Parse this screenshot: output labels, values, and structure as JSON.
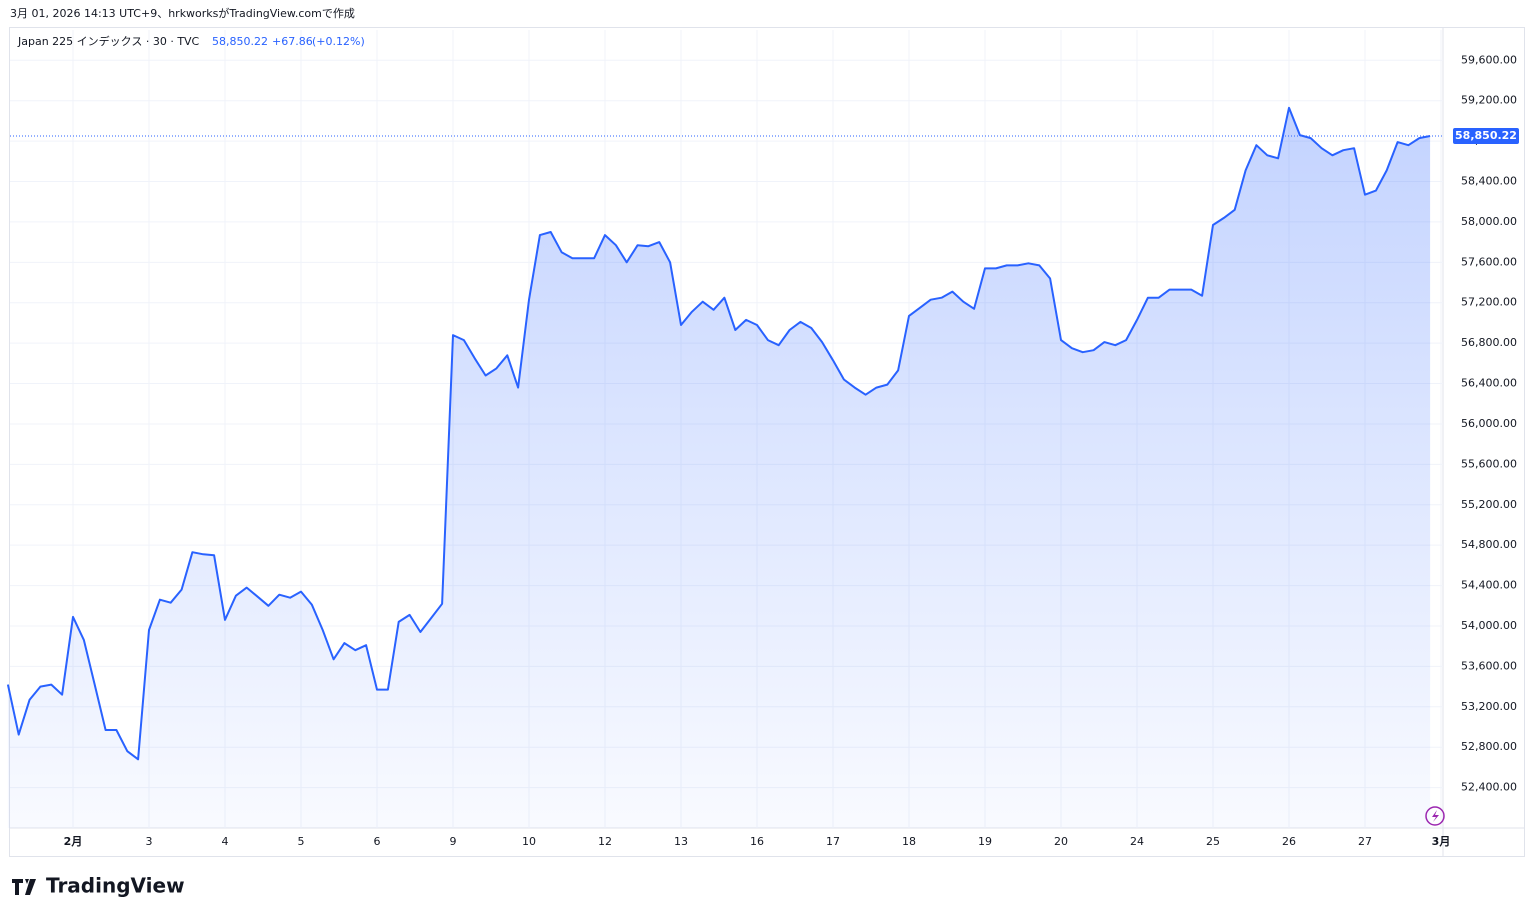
{
  "caption": "3月 01, 2026 14:13 UTC+9、hrkworksがTradingView.comで作成",
  "brand": "TradingView",
  "chart_data": {
    "type": "area",
    "symbol": "Japan 225 インデックス · 30 · TVC",
    "last_price": {
      "value": 58850.22,
      "label": "58,850.22"
    },
    "change": "+67.86",
    "change_pct": "(+0.12%)",
    "grid": true,
    "categories": [
      null,
      null,
      null,
      null,
      null,
      null,
      "2月",
      null,
      null,
      null,
      null,
      null,
      null,
      "3",
      null,
      null,
      null,
      null,
      null,
      null,
      "4",
      null,
      null,
      null,
      null,
      null,
      null,
      "5",
      null,
      null,
      null,
      null,
      null,
      null,
      "6",
      null,
      null,
      null,
      null,
      null,
      null,
      "9",
      null,
      null,
      null,
      null,
      null,
      null,
      "10",
      null,
      null,
      null,
      null,
      null,
      null,
      "12",
      null,
      null,
      null,
      null,
      null,
      null,
      "13",
      null,
      null,
      null,
      null,
      null,
      null,
      "16",
      null,
      null,
      null,
      null,
      null,
      null,
      "17",
      null,
      null,
      null,
      null,
      null,
      null,
      "18",
      null,
      null,
      null,
      null,
      null,
      null,
      "19",
      null,
      null,
      null,
      null,
      null,
      null,
      "20",
      null,
      null,
      null,
      null,
      null,
      null,
      "24",
      null,
      null,
      null,
      null,
      null,
      null,
      "25",
      null,
      null,
      null,
      null,
      null,
      null,
      "26",
      null,
      null,
      null,
      null,
      null,
      null,
      "27",
      null,
      null,
      null,
      null,
      null,
      null,
      "3月"
    ],
    "series": [
      {
        "color": "#2962ff",
        "values": [
          53420,
          52925,
          53270,
          53400,
          53420,
          53320,
          54090,
          53860,
          53420,
          52970,
          52970,
          52760,
          52680,
          53960,
          54260,
          54230,
          54360,
          54730,
          54710,
          54700,
          54060,
          54300,
          54380,
          54290,
          54200,
          54310,
          54280,
          54340,
          54210,
          53960,
          53670,
          53830,
          53760,
          53810,
          53370,
          53370,
          54040,
          54110,
          53940,
          54080,
          54220,
          56880,
          56830,
          56650,
          56480,
          56550,
          56680,
          56360,
          57230,
          57870,
          57900,
          57700,
          57640,
          57640,
          57640,
          57870,
          57770,
          57600,
          57770,
          57760,
          57800,
          57600,
          56980,
          57110,
          57210,
          57130,
          57250,
          56930,
          57030,
          56980,
          56830,
          56780,
          56930,
          57010,
          56950,
          56810,
          56630,
          56440,
          56360,
          56290,
          56360,
          56390,
          56530,
          57070,
          57150,
          57230,
          57250,
          57310,
          57210,
          57140,
          57540,
          57540,
          57570,
          57570,
          57590,
          57570,
          57440,
          56830,
          56750,
          56710,
          56730,
          56810,
          56780,
          56830,
          57030,
          57250,
          57250,
          57330,
          57330,
          57330,
          57270,
          57970,
          58040,
          58120,
          58510,
          58760,
          58660,
          58630,
          59130,
          58860,
          58830,
          58730,
          58660,
          58710,
          58730,
          58270,
          58310,
          58510,
          58790,
          58760,
          58830,
          58850.22,
          null
        ]
      }
    ],
    "ylim": [
      52000,
      59900
    ],
    "yticks": [
      {
        "value": 52400,
        "label": "52,400.00"
      },
      {
        "value": 52800,
        "label": "52,800.00"
      },
      {
        "value": 53200,
        "label": "53,200.00"
      },
      {
        "value": 53600,
        "label": "53,600.00"
      },
      {
        "value": 54000,
        "label": "54,000.00"
      },
      {
        "value": 54400,
        "label": "54,400.00"
      },
      {
        "value": 54800,
        "label": "54,800.00"
      },
      {
        "value": 55200,
        "label": "55,200.00"
      },
      {
        "value": 55600,
        "label": "55,600.00"
      },
      {
        "value": 56000,
        "label": "56,000.00"
      },
      {
        "value": 56400,
        "label": "56,400.00"
      },
      {
        "value": 56800,
        "label": "56,800.00"
      },
      {
        "value": 57200,
        "label": "57,200.00"
      },
      {
        "value": 57600,
        "label": "57,600.00"
      },
      {
        "value": 58000,
        "label": "58,000.00"
      },
      {
        "value": 58400,
        "label": "58,400.00"
      },
      {
        "value": 58800,
        "label": "58,800.00"
      },
      {
        "value": 59200,
        "label": "59,200.00"
      },
      {
        "value": 59600,
        "label": "59,600.00"
      }
    ]
  }
}
